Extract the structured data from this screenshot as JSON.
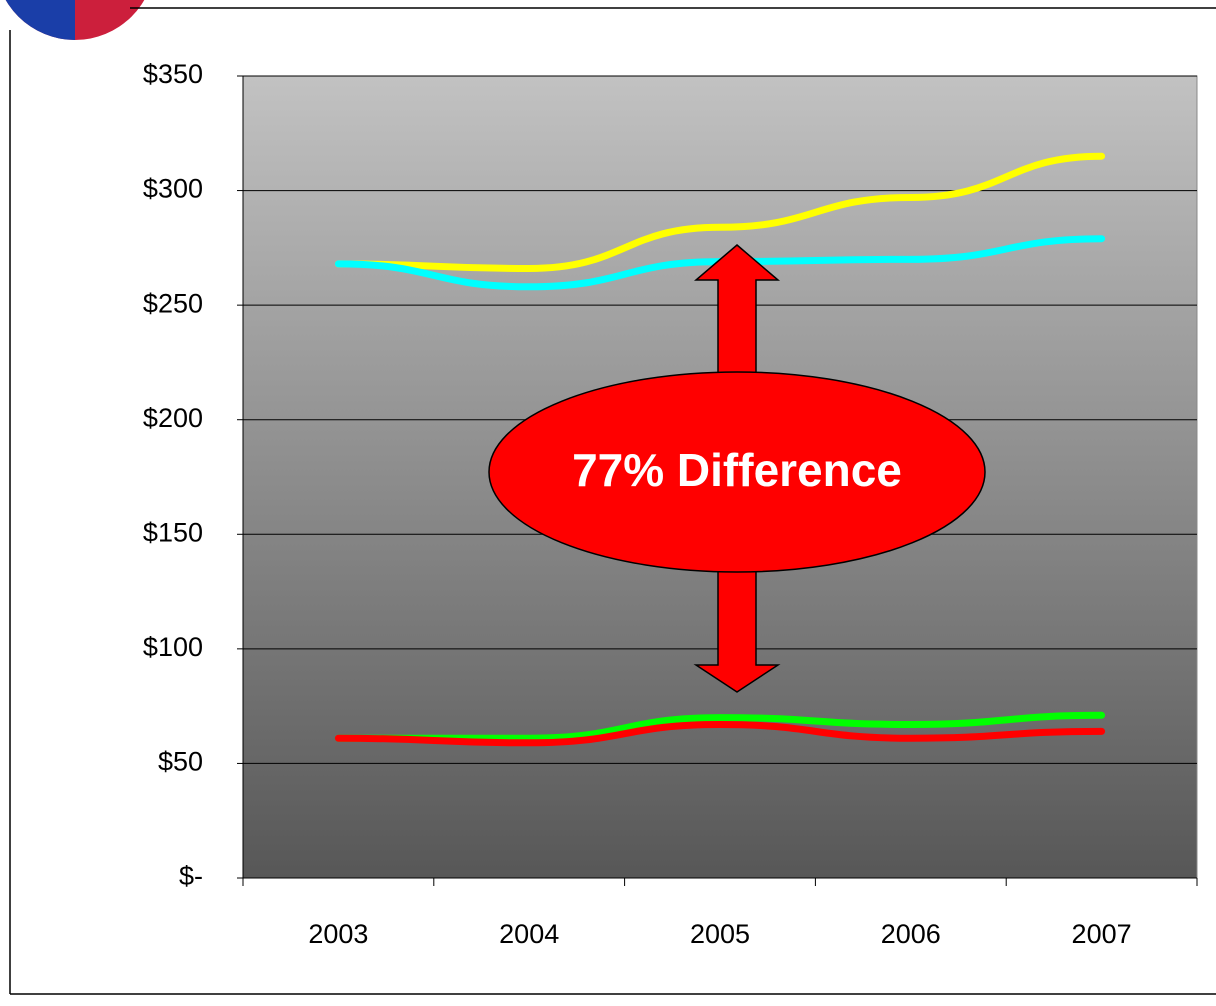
{
  "chart_data": {
    "type": "line",
    "categories": [
      "2003",
      "2004",
      "2005",
      "2006",
      "2007"
    ],
    "series": [
      {
        "color": "#ffff00",
        "values": [
          268,
          266,
          284,
          297,
          315
        ]
      },
      {
        "color": "#00ffff",
        "values": [
          268,
          258,
          269,
          270,
          279
        ]
      },
      {
        "color": "#00ff00",
        "values": [
          61,
          61,
          70,
          67,
          71
        ]
      },
      {
        "color": "#ff0000",
        "values": [
          61,
          59,
          67,
          61,
          64
        ]
      }
    ],
    "ylim": [
      0,
      350
    ],
    "yticks": [
      {
        "value": 0,
        "label": "$-"
      },
      {
        "value": 50,
        "label": "$50"
      },
      {
        "value": 100,
        "label": "$100"
      },
      {
        "value": 150,
        "label": "$150"
      },
      {
        "value": 200,
        "label": "$200"
      },
      {
        "value": 250,
        "label": "$250"
      },
      {
        "value": 300,
        "label": "$300"
      },
      {
        "value": 350,
        "label": "$350"
      }
    ],
    "grid": true,
    "annotations": [
      "77%  Difference"
    ]
  }
}
